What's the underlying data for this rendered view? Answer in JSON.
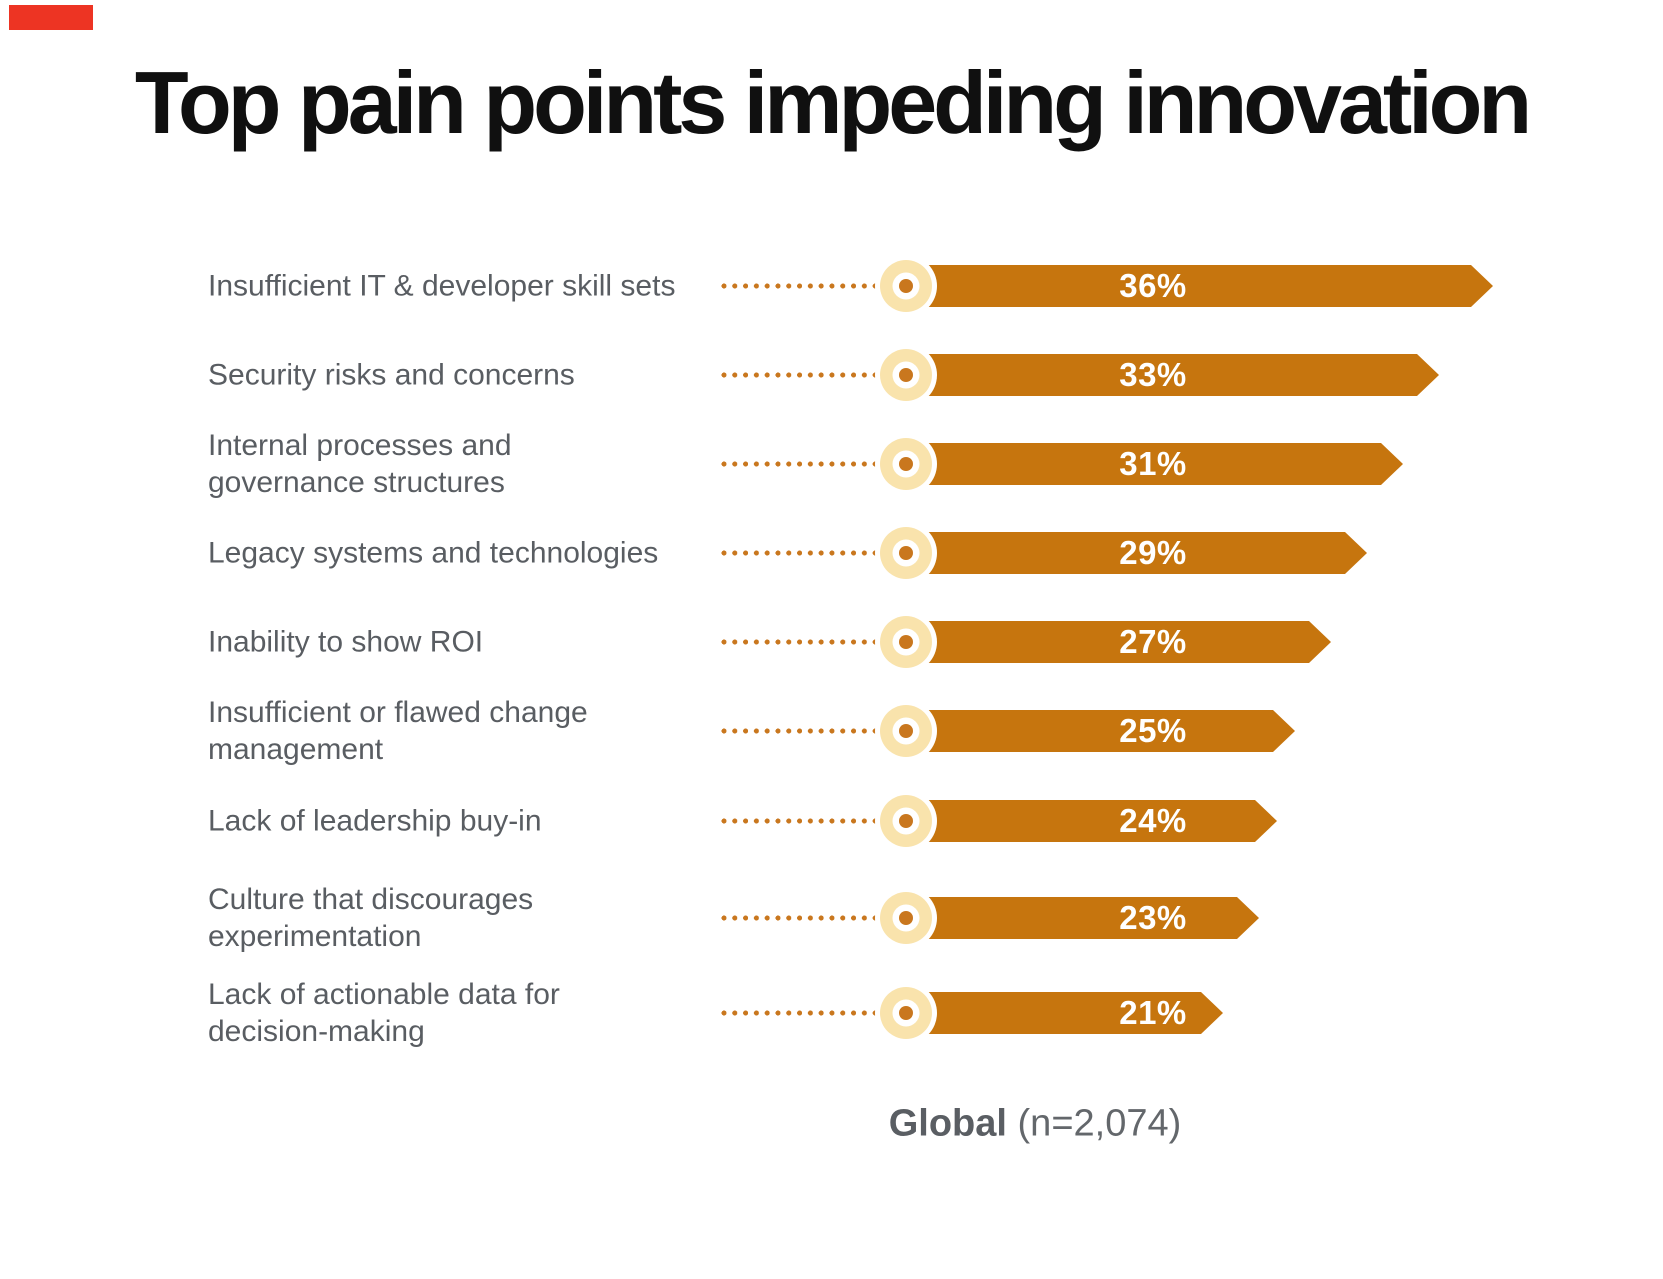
{
  "title": "Top pain points impeding innovation",
  "footer": {
    "bold": "Global",
    "rest": " (n=2,074)"
  },
  "colors": {
    "bar": "#C6750E",
    "bullet_outer": "#F9E3AC",
    "bullet_dot": "#C9771E",
    "label_gray": "#595d62",
    "title_black": "#101010",
    "corner_marker_red": "#ED3423"
  },
  "chart_data": {
    "type": "bar",
    "orientation": "horizontal",
    "title": "Top pain points impeding innovation",
    "legend": "Global (n=2,074)",
    "sample_size": "n=2,074",
    "unit": "percent",
    "xlim": [
      0,
      40
    ],
    "grid": false,
    "categories": [
      "Insufficient IT & developer skill sets",
      "Security risks and concerns",
      "Internal processes and governance structures",
      "Legacy systems and technologies",
      "Inability to show ROI",
      "Insufficient or flawed change management",
      "Lack of leadership buy-in",
      "Culture that discourages experimentation",
      "Lack of actionable data for decision-making"
    ],
    "values": [
      36,
      33,
      31,
      29,
      27,
      25,
      24,
      23,
      21
    ],
    "rows": [
      {
        "line1": "Insufficient IT & developer skill sets",
        "line2": "",
        "value": 36,
        "value_label": "36%"
      },
      {
        "line1": "Security risks and concerns",
        "line2": "",
        "value": 33,
        "value_label": "33%"
      },
      {
        "line1": "Internal processes and",
        "line2": "governance structures",
        "value": 31,
        "value_label": "31%"
      },
      {
        "line1": "Legacy systems and technologies",
        "line2": "",
        "value": 29,
        "value_label": "29%"
      },
      {
        "line1": "Inability to show ROI",
        "line2": "",
        "value": 27,
        "value_label": "27%"
      },
      {
        "line1": "Insufficient or flawed change",
        "line2": "management",
        "value": 25,
        "value_label": "25%"
      },
      {
        "line1": "Lack of leadership buy-in",
        "line2": "",
        "value": 24,
        "value_label": "24%"
      },
      {
        "line1": "Culture that discourages",
        "line2": "experimentation",
        "value": 23,
        "value_label": "23%"
      },
      {
        "line1": "Lack of actionable data for",
        "line2": "decision-making",
        "value": 21,
        "value_label": "21%"
      }
    ]
  }
}
